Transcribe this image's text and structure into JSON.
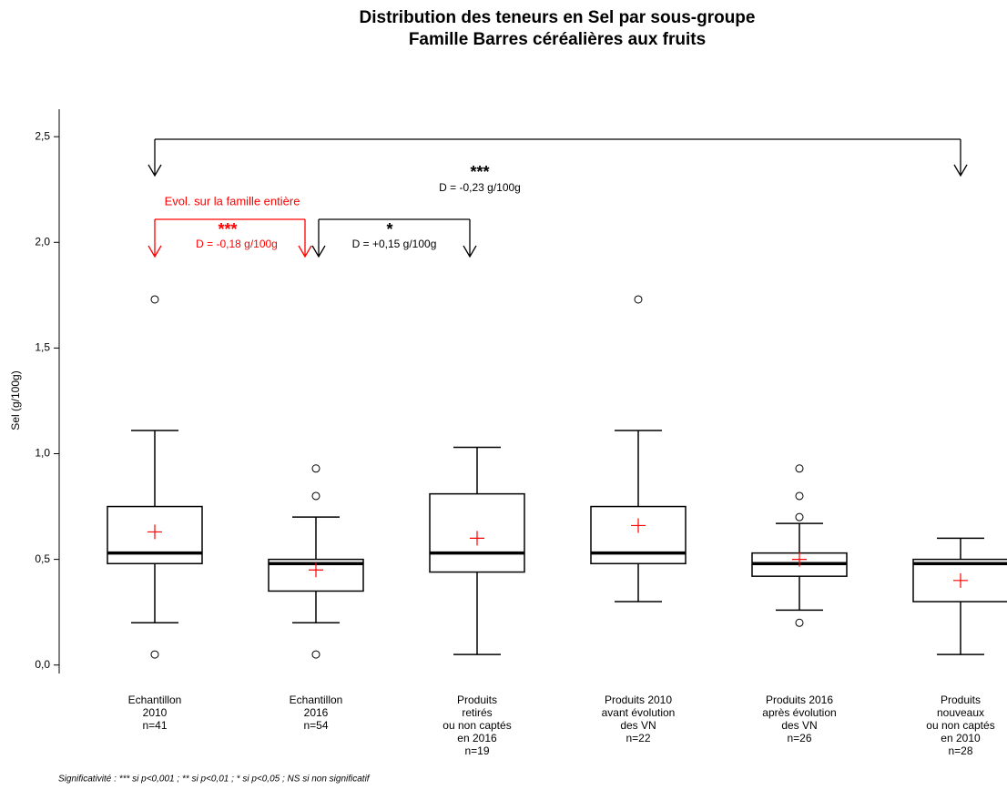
{
  "chart_data": {
    "type": "box",
    "title": [
      "Distribution des teneurs en Sel par sous-groupe",
      "Famille Barres céréalières aux fruits"
    ],
    "ylabel": "Sel (g/100g)",
    "categories": [
      [
        "Echantillon",
        "2010",
        "n=41"
      ],
      [
        "Echantillon",
        "2016",
        "n=54"
      ],
      [
        "Produits",
        "retirés",
        "ou non captés",
        "en 2016",
        "n=19"
      ],
      [
        "Produits 2010",
        "avant évolution",
        "des VN",
        "n=22"
      ],
      [
        "Produits 2016",
        "après évolution",
        "des VN",
        "n=26"
      ],
      [
        "Produits",
        "nouveaux",
        "ou non captés",
        "en 2010",
        "n=28"
      ]
    ],
    "boxes": [
      {
        "whislo": 0.2,
        "q1": 0.48,
        "med": 0.53,
        "q3": 0.75,
        "whishi": 1.11,
        "mean": 0.63,
        "fliers": [
          0.05,
          1.73
        ]
      },
      {
        "whislo": 0.2,
        "q1": 0.35,
        "med": 0.48,
        "q3": 0.5,
        "whishi": 0.7,
        "mean": 0.45,
        "fliers": [
          0.05,
          0.8,
          0.93
        ]
      },
      {
        "whislo": 0.05,
        "q1": 0.44,
        "med": 0.53,
        "q3": 0.81,
        "whishi": 1.03,
        "mean": 0.6,
        "fliers": []
      },
      {
        "whislo": 0.3,
        "q1": 0.48,
        "med": 0.53,
        "q3": 0.75,
        "whishi": 1.11,
        "mean": 0.66,
        "fliers": [
          1.73
        ]
      },
      {
        "whislo": 0.26,
        "q1": 0.42,
        "med": 0.48,
        "q3": 0.53,
        "whishi": 0.67,
        "mean": 0.5,
        "fliers": [
          0.2,
          0.7,
          0.8,
          0.93
        ]
      },
      {
        "whislo": 0.05,
        "q1": 0.3,
        "med": 0.48,
        "q3": 0.5,
        "whishi": 0.6,
        "mean": 0.4,
        "fliers": []
      }
    ],
    "mean_color": "#ff0000",
    "ylim": [
      -0.04,
      2.63
    ],
    "yticks": [
      {
        "value": 0,
        "label": "0,0"
      },
      {
        "value": 0.5,
        "label": "0,5"
      },
      {
        "value": 1,
        "label": "1,0"
      },
      {
        "value": 1.5,
        "label": "1,5"
      },
      {
        "value": 2,
        "label": "2,0"
      },
      {
        "value": 2.5,
        "label": "2,5"
      }
    ],
    "annotations": [
      {
        "stars": "***",
        "text": "D = -0,23 g/100g",
        "color": "#000000"
      },
      {
        "title": "Evol. sur la famille entière",
        "stars": "***",
        "text": "D = -0,18 g/100g",
        "color": "#ff0000"
      },
      {
        "stars": "*",
        "text": "D = +0,15 g/100g",
        "color": "#000000"
      }
    ],
    "footnote": "Significativité : *** si p<0,001 ; ** si p<0,01 ; * si p<0,05 ; NS si non significatif"
  }
}
